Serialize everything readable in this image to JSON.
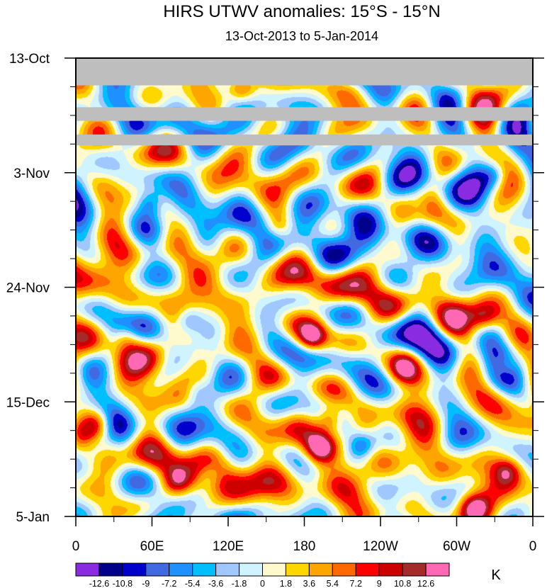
{
  "chart_data": {
    "type": "heatmap",
    "title": "HIRS UTWV anomalies: 15°S - 15°N",
    "subtitle": "13-Oct-2013 to 5-Jan-2014",
    "x_tick_labels": [
      "0",
      "60E",
      "120E",
      "180",
      "120W",
      "60W",
      "0"
    ],
    "x_tick_values_deg_east": [
      0,
      60,
      120,
      180,
      240,
      300,
      360
    ],
    "y_tick_labels": [
      "13-Oct",
      "3-Nov",
      "24-Nov",
      "15-Dec",
      "5-Jan"
    ],
    "y_tick_values_days": [
      0,
      21,
      42,
      63,
      84
    ],
    "x_range_deg_east": [
      0,
      360
    ],
    "y_range_days_from_start": [
      0,
      84
    ],
    "colorbar_levels": [
      -12.6,
      -10.8,
      -9,
      -7.2,
      -5.4,
      -3.6,
      -1.8,
      0,
      1.8,
      3.6,
      5.4,
      7.2,
      9,
      10.8,
      12.6
    ],
    "colorbar_level_labels": [
      "-12.6",
      "-10.8",
      "-9",
      "-7.2",
      "-5.4",
      "-3.6",
      "-1.8",
      "0",
      "1.8",
      "3.6",
      "5.4",
      "7.2",
      "9",
      "10.8",
      "12.6"
    ],
    "colorbar_colors": [
      "#8a2be2",
      "#00008b",
      "#0000cd",
      "#4169e1",
      "#1e90ff",
      "#00bfff",
      "#a0c8ff",
      "#d0f4ff",
      "#fffacd",
      "#ffd700",
      "#ffa500",
      "#ff6a00",
      "#ff0000",
      "#cd0000",
      "#a52a2a",
      "#ff69b4"
    ],
    "units": "K",
    "missing_color": "#bebebe",
    "missing_day_ranges": [
      [
        0,
        5
      ],
      [
        9,
        11.5
      ],
      [
        14,
        16
      ]
    ],
    "anomaly_centers": [
      {
        "lon": 322,
        "day": 47.5,
        "value": 8
      },
      {
        "lon": 338,
        "day": 56.5,
        "value": 9
      },
      {
        "lon": 186,
        "day": 51.0,
        "value": 11
      },
      {
        "lon": 200,
        "day": 66.0,
        "value": 10
      },
      {
        "lon": 192,
        "day": 71.5,
        "value": 10
      },
      {
        "lon": 314,
        "day": 82.5,
        "value": 9
      },
      {
        "lon": 340,
        "day": 75.5,
        "value": 8
      },
      {
        "lon": 18,
        "day": 66.5,
        "value": 8
      },
      {
        "lon": 40,
        "day": 51.0,
        "value": 7
      },
      {
        "lon": 258,
        "day": 57.0,
        "value": 6
      },
      {
        "lon": 160,
        "day": 31.0,
        "value": 6
      },
      {
        "lon": 80,
        "day": 77.5,
        "value": 7
      },
      {
        "lon": 130,
        "day": 5.5,
        "value": 8
      },
      {
        "lon": 58,
        "day": 26.5,
        "value": -9
      },
      {
        "lon": 88,
        "day": 48.0,
        "value": -8
      },
      {
        "lon": 330,
        "day": 21.5,
        "value": -7
      },
      {
        "lon": 225,
        "day": 71.0,
        "value": -8
      },
      {
        "lon": 15,
        "day": 71.0,
        "value": -7
      },
      {
        "lon": 95,
        "day": 61.0,
        "value": -6
      },
      {
        "lon": 270,
        "day": 27.0,
        "value": -6
      },
      {
        "lon": 105,
        "day": 76.0,
        "value": -6
      }
    ]
  }
}
